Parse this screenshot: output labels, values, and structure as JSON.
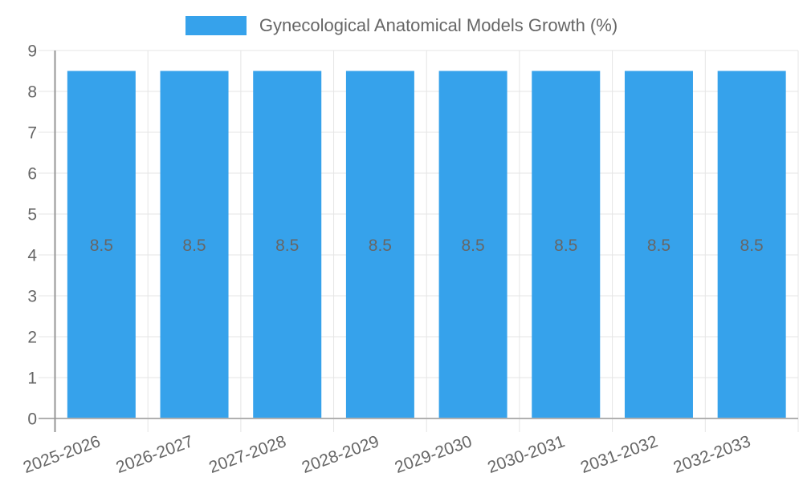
{
  "chart_data": {
    "type": "bar",
    "title": "",
    "legend_position": "top",
    "series": [
      {
        "name": "Gynecological Anatomical Models Growth (%)",
        "color": "#36a2eb",
        "values": [
          8.5,
          8.5,
          8.5,
          8.5,
          8.5,
          8.5,
          8.5,
          8.5
        ]
      }
    ],
    "categories": [
      "2025-2026",
      "2026-2027",
      "2027-2028",
      "2028-2029",
      "2029-2030",
      "2030-2031",
      "2031-2032",
      "2032-2033"
    ],
    "value_labels": [
      "8.5",
      "8.5",
      "8.5",
      "8.5",
      "8.5",
      "8.5",
      "8.5",
      "8.5"
    ],
    "y_tick_labels": [
      "0",
      "1",
      "2",
      "3",
      "4",
      "5",
      "6",
      "7",
      "8",
      "9"
    ],
    "xlabel": "",
    "ylabel": "",
    "ylim": [
      0,
      9
    ],
    "y_tick_step": 1,
    "grid": true,
    "colors": {
      "bar": "#36a2eb",
      "text": "#666666",
      "value_label": "#ffffff",
      "grid": "#e5e5e5",
      "y_zero_line": "#b0b0b0",
      "x_zero_line": "#969696",
      "background": "#ffffff"
    }
  }
}
